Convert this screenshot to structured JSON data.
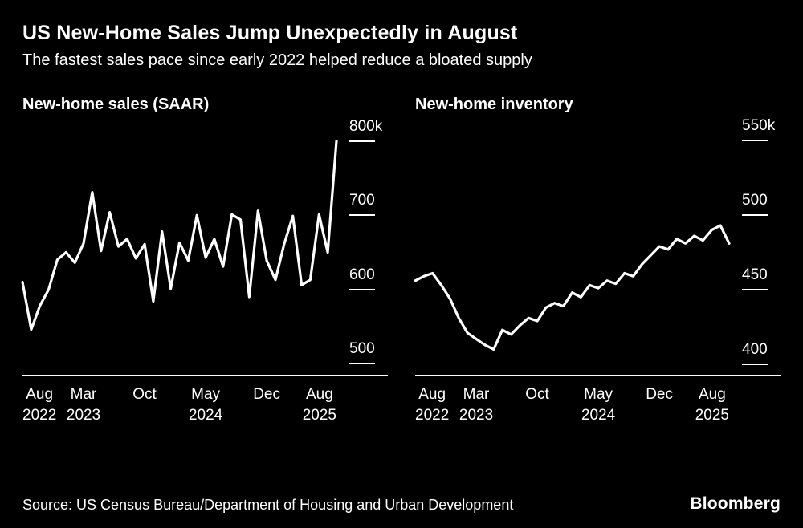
{
  "header": {
    "title": "US New-Home Sales Jump Unexpectedly in August",
    "subtitle": "The fastest sales pace since early 2022 helped reduce a bloated supply"
  },
  "chart_data": [
    {
      "type": "line",
      "title": "New-home sales (SAAR)",
      "x_range": [
        "Aug 2022",
        "Aug 2025"
      ],
      "ylim": [
        485,
        815
      ],
      "y_ticks": [
        {
          "value": 800,
          "label": "800k"
        },
        {
          "value": 700,
          "label": "700"
        },
        {
          "value": 600,
          "label": "600"
        },
        {
          "value": 500,
          "label": "500"
        }
      ],
      "x_ticks": [
        {
          "pos": 0,
          "month": "Aug",
          "year": "2022"
        },
        {
          "pos": 7,
          "month": "Mar",
          "year": "2023"
        },
        {
          "pos": 14,
          "month": "Oct",
          "year": ""
        },
        {
          "pos": 21,
          "month": "May",
          "year": "2024"
        },
        {
          "pos": 28,
          "month": "Dec",
          "year": ""
        },
        {
          "pos": 36,
          "month": "Aug",
          "year": "2025"
        }
      ],
      "values": [
        610,
        546,
        578,
        600,
        640,
        650,
        636,
        662,
        731,
        652,
        704,
        658,
        668,
        642,
        661,
        584,
        678,
        601,
        663,
        639,
        700,
        643,
        668,
        631,
        701,
        694,
        590,
        706,
        639,
        613,
        661,
        699,
        606,
        613,
        701,
        650,
        800
      ]
    },
    {
      "type": "line",
      "title": "New-home inventory",
      "x_range": [
        "Aug 2022",
        "Aug 2025"
      ],
      "ylim": [
        393,
        557
      ],
      "y_ticks": [
        {
          "value": 550,
          "label": "550k"
        },
        {
          "value": 500,
          "label": "500"
        },
        {
          "value": 450,
          "label": "450"
        },
        {
          "value": 400,
          "label": "400"
        }
      ],
      "x_ticks": [
        {
          "pos": 0,
          "month": "Aug",
          "year": "2022"
        },
        {
          "pos": 7,
          "month": "Mar",
          "year": "2023"
        },
        {
          "pos": 14,
          "month": "Oct",
          "year": ""
        },
        {
          "pos": 21,
          "month": "May",
          "year": "2024"
        },
        {
          "pos": 28,
          "month": "Dec",
          "year": ""
        },
        {
          "pos": 36,
          "month": "Aug",
          "year": "2025"
        }
      ],
      "values": [
        456,
        459,
        461,
        453,
        444,
        431,
        421,
        417,
        413,
        410,
        423,
        420,
        426,
        431,
        429,
        438,
        441,
        439,
        448,
        445,
        453,
        451,
        456,
        454,
        461,
        459,
        467,
        473,
        479,
        477,
        484,
        481,
        486,
        483,
        490,
        493,
        481
      ]
    }
  ],
  "footer": {
    "source": "Source: US Census Bureau/Department of Housing and Urban Development",
    "brand": "Bloomberg"
  },
  "colors": {
    "background": "#000000",
    "foreground": "#ffffff"
  }
}
